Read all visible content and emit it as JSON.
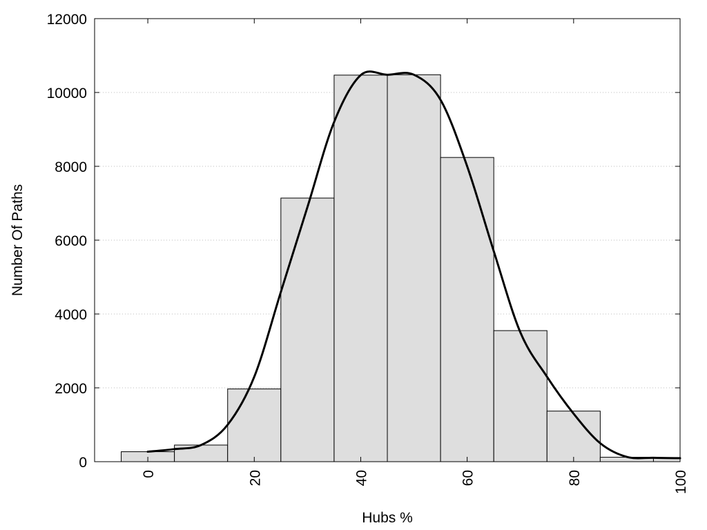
{
  "chart_data": {
    "type": "bar",
    "title": "",
    "xlabel": "Hubs %",
    "ylabel": "Number Of Paths",
    "xlim": [
      -10,
      100
    ],
    "ylim": [
      0,
      12000
    ],
    "grid": "horizontal-dotted",
    "legend": "none",
    "x_ticks": [
      0,
      20,
      40,
      60,
      80,
      100
    ],
    "y_ticks": [
      0,
      2000,
      4000,
      6000,
      8000,
      10000,
      12000
    ],
    "bin_width": 10,
    "bins": [
      {
        "center": 0,
        "value": 270
      },
      {
        "center": 10,
        "value": 450
      },
      {
        "center": 20,
        "value": 1970
      },
      {
        "center": 30,
        "value": 7140
      },
      {
        "center": 40,
        "value": 10470
      },
      {
        "center": 50,
        "value": 10480
      },
      {
        "center": 60,
        "value": 8240
      },
      {
        "center": 70,
        "value": 3550
      },
      {
        "center": 80,
        "value": 1370
      },
      {
        "center": 90,
        "value": 120
      },
      {
        "center": 100,
        "value": 100
      }
    ],
    "curve": {
      "x": [
        0,
        5,
        10,
        15,
        20,
        25,
        30,
        35,
        40,
        45,
        50,
        55,
        60,
        65,
        70,
        75,
        80,
        85,
        90,
        95,
        100
      ],
      "y": [
        270,
        340,
        450,
        1000,
        2300,
        4600,
        6900,
        9200,
        10470,
        10480,
        10480,
        9800,
        8000,
        5700,
        3500,
        2300,
        1300,
        500,
        130,
        105,
        95
      ]
    },
    "colors": {
      "bar_fill": "#dedede",
      "bar_stroke": "#000000",
      "curve": "#000000",
      "grid": "#bbbbbb"
    }
  }
}
